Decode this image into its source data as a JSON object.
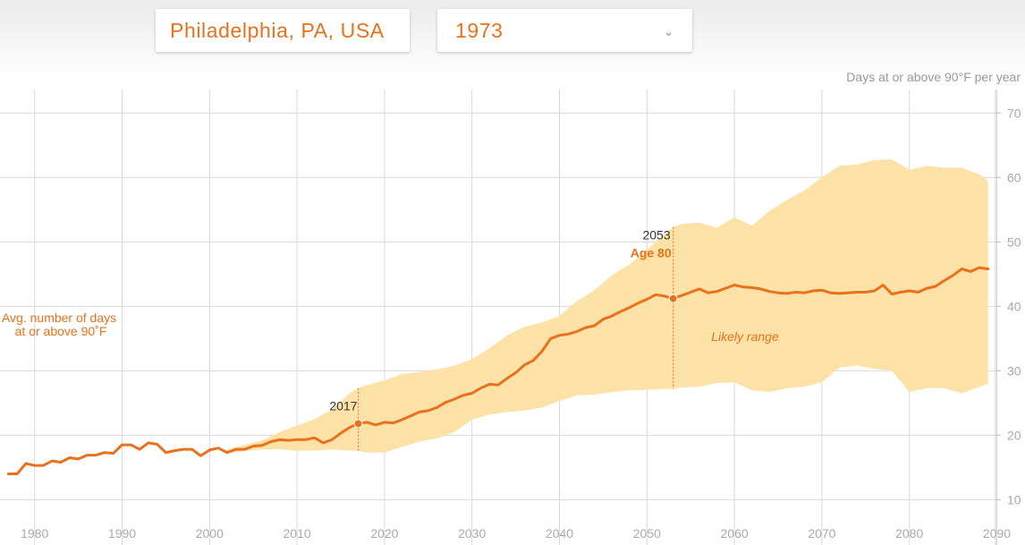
{
  "controls": {
    "location_value": "Philadelphia, PA, USA",
    "year_value": "1973"
  },
  "icons": {
    "year_dropdown": "chevron-down-icon"
  },
  "colors": {
    "accent": "#e9711c",
    "range_fill": "#fde2a8",
    "grid": "#d9d9d9",
    "tick_text": "#aaaaaa"
  },
  "chart_data": {
    "type": "line",
    "unit_label": "Days at or above 90°F per year",
    "series_label": "Avg. number of days at or above 90˚F",
    "range_label": "Likely range",
    "xlim": [
      1977,
      2091
    ],
    "ylim": [
      7,
      72
    ],
    "x_ticks": [
      "1980",
      "1990",
      "2000",
      "2010",
      "2020",
      "2030",
      "2040",
      "2050",
      "2060",
      "2070",
      "2080",
      "2090"
    ],
    "y_ticks": [
      "70",
      "60",
      "50",
      "40",
      "30",
      "20",
      "10"
    ],
    "grid": true,
    "markers": [
      {
        "year_label": "2017",
        "x": 2017,
        "y": 21.8,
        "range_top": 27.3,
        "range_bottom": 17.6
      },
      {
        "year_label": "2053",
        "age_label": "Age 80",
        "x": 2053,
        "y": 41.2,
        "range_top": 52.3,
        "range_bottom": 27.2
      }
    ],
    "series": [
      {
        "name": "Avg. number of days at or above 90˚F",
        "points": [
          [
            1977,
            14
          ],
          [
            1978,
            14
          ],
          [
            1979,
            15.6
          ],
          [
            1980,
            15.3
          ],
          [
            1981,
            15.3
          ],
          [
            1982,
            16
          ],
          [
            1983,
            15.8
          ],
          [
            1984,
            16.5
          ],
          [
            1985,
            16.3
          ],
          [
            1986,
            16.9
          ],
          [
            1987,
            16.9
          ],
          [
            1988,
            17.3
          ],
          [
            1989,
            17.2
          ],
          [
            1990,
            18.5
          ],
          [
            1991,
            18.5
          ],
          [
            1992,
            17.8
          ],
          [
            1993,
            18.8
          ],
          [
            1994,
            18.6
          ],
          [
            1995,
            17.3
          ],
          [
            1996,
            17.6
          ],
          [
            1997,
            17.8
          ],
          [
            1998,
            17.8
          ],
          [
            1999,
            16.8
          ],
          [
            2000,
            17.7
          ],
          [
            2001,
            18
          ],
          [
            2002,
            17.3
          ],
          [
            2003,
            17.8
          ],
          [
            2004,
            17.8
          ],
          [
            2005,
            18.3
          ],
          [
            2006,
            18.4
          ],
          [
            2007,
            19
          ],
          [
            2008,
            19.3
          ],
          [
            2009,
            19.2
          ],
          [
            2010,
            19.3
          ],
          [
            2011,
            19.3
          ],
          [
            2012,
            19.6
          ],
          [
            2013,
            18.8
          ],
          [
            2014,
            19.3
          ],
          [
            2015,
            20.3
          ],
          [
            2016,
            21.2
          ],
          [
            2017,
            21.8
          ],
          [
            2018,
            22
          ],
          [
            2019,
            21.6
          ],
          [
            2020,
            22
          ],
          [
            2021,
            21.9
          ],
          [
            2022,
            22.4
          ],
          [
            2023,
            23
          ],
          [
            2024,
            23.6
          ],
          [
            2025,
            23.8
          ],
          [
            2026,
            24.3
          ],
          [
            2027,
            25.1
          ],
          [
            2028,
            25.6
          ],
          [
            2029,
            26.2
          ],
          [
            2030,
            26.5
          ],
          [
            2031,
            27.3
          ],
          [
            2032,
            27.9
          ],
          [
            2033,
            27.8
          ],
          [
            2034,
            28.8
          ],
          [
            2035,
            29.7
          ],
          [
            2036,
            30.9
          ],
          [
            2037,
            31.6
          ],
          [
            2038,
            33
          ],
          [
            2039,
            35
          ],
          [
            2040,
            35.5
          ],
          [
            2041,
            35.7
          ],
          [
            2042,
            36.1
          ],
          [
            2043,
            36.7
          ],
          [
            2044,
            37
          ],
          [
            2045,
            38
          ],
          [
            2046,
            38.5
          ],
          [
            2047,
            39.2
          ],
          [
            2048,
            39.8
          ],
          [
            2049,
            40.5
          ],
          [
            2050,
            41.1
          ],
          [
            2051,
            41.8
          ],
          [
            2052,
            41.6
          ],
          [
            2053,
            41.2
          ],
          [
            2054,
            41.7
          ],
          [
            2055,
            42.2
          ],
          [
            2056,
            42.7
          ],
          [
            2057,
            42.1
          ],
          [
            2058,
            42.3
          ],
          [
            2059,
            42.8
          ],
          [
            2060,
            43.3
          ],
          [
            2061,
            43
          ],
          [
            2062,
            42.9
          ],
          [
            2063,
            42.7
          ],
          [
            2064,
            42.3
          ],
          [
            2065,
            42.1
          ],
          [
            2066,
            42
          ],
          [
            2067,
            42.2
          ],
          [
            2068,
            42.1
          ],
          [
            2069,
            42.4
          ],
          [
            2070,
            42.5
          ],
          [
            2071,
            42.1
          ],
          [
            2072,
            42
          ],
          [
            2073,
            42.1
          ],
          [
            2074,
            42.2
          ],
          [
            2075,
            42.2
          ],
          [
            2076,
            42.4
          ],
          [
            2077,
            43.3
          ],
          [
            2078,
            41.9
          ],
          [
            2079,
            42.2
          ],
          [
            2080,
            42.4
          ],
          [
            2081,
            42.2
          ],
          [
            2082,
            42.8
          ],
          [
            2083,
            43.1
          ],
          [
            2084,
            44
          ],
          [
            2085,
            44.8
          ],
          [
            2086,
            45.8
          ],
          [
            2087,
            45.4
          ],
          [
            2088,
            46
          ],
          [
            2089,
            45.8
          ]
        ],
        "range_top": [
          [
            2002,
            17.8
          ],
          [
            2004,
            18.5
          ],
          [
            2006,
            19.2
          ],
          [
            2008,
            20.5
          ],
          [
            2010,
            21.5
          ],
          [
            2012,
            22.5
          ],
          [
            2014,
            24
          ],
          [
            2016,
            26.5
          ],
          [
            2017,
            27.3
          ],
          [
            2018,
            27.8
          ],
          [
            2020,
            28.5
          ],
          [
            2022,
            29.5
          ],
          [
            2024,
            29.8
          ],
          [
            2026,
            30.2
          ],
          [
            2028,
            30.8
          ],
          [
            2030,
            31.8
          ],
          [
            2032,
            33.5
          ],
          [
            2034,
            35.5
          ],
          [
            2036,
            36.8
          ],
          [
            2038,
            37.5
          ],
          [
            2040,
            38.5
          ],
          [
            2042,
            40.8
          ],
          [
            2044,
            42.5
          ],
          [
            2046,
            44.8
          ],
          [
            2048,
            46.5
          ],
          [
            2050,
            48.8
          ],
          [
            2052,
            51.2
          ],
          [
            2053,
            52.3
          ],
          [
            2054,
            52.8
          ],
          [
            2056,
            53
          ],
          [
            2058,
            52.2
          ],
          [
            2060,
            53.8
          ],
          [
            2062,
            52.5
          ],
          [
            2064,
            54.8
          ],
          [
            2066,
            56.5
          ],
          [
            2068,
            58
          ],
          [
            2070,
            60
          ],
          [
            2072,
            61.8
          ],
          [
            2074,
            62
          ],
          [
            2076,
            62.7
          ],
          [
            2078,
            62.8
          ],
          [
            2080,
            61.2
          ],
          [
            2082,
            61.8
          ],
          [
            2084,
            61.5
          ],
          [
            2086,
            61.5
          ],
          [
            2088,
            60.5
          ],
          [
            2089,
            59.5
          ]
        ],
        "range_bottom": [
          [
            2002,
            17.2
          ],
          [
            2004,
            17.5
          ],
          [
            2006,
            17.8
          ],
          [
            2008,
            17.8
          ],
          [
            2010,
            17.6
          ],
          [
            2012,
            17.6
          ],
          [
            2014,
            17.8
          ],
          [
            2016,
            17.6
          ],
          [
            2017,
            17.6
          ],
          [
            2018,
            17.3
          ],
          [
            2020,
            17.3
          ],
          [
            2022,
            18.2
          ],
          [
            2024,
            19
          ],
          [
            2026,
            19.5
          ],
          [
            2028,
            20.5
          ],
          [
            2030,
            22.4
          ],
          [
            2032,
            23.2
          ],
          [
            2034,
            23.6
          ],
          [
            2036,
            23.8
          ],
          [
            2038,
            24.3
          ],
          [
            2040,
            25.3
          ],
          [
            2042,
            26.2
          ],
          [
            2044,
            26.3
          ],
          [
            2046,
            26.7
          ],
          [
            2048,
            27
          ],
          [
            2050,
            27
          ],
          [
            2052,
            27.2
          ],
          [
            2053,
            27.2
          ],
          [
            2054,
            27.4
          ],
          [
            2056,
            27.5
          ],
          [
            2058,
            28.1
          ],
          [
            2060,
            28.2
          ],
          [
            2062,
            27
          ],
          [
            2064,
            26.7
          ],
          [
            2066,
            27.3
          ],
          [
            2068,
            27.5
          ],
          [
            2070,
            28.2
          ],
          [
            2072,
            30.5
          ],
          [
            2074,
            30.8
          ],
          [
            2076,
            30.3
          ],
          [
            2078,
            30
          ],
          [
            2080,
            26.7
          ],
          [
            2082,
            27.3
          ],
          [
            2084,
            27.3
          ],
          [
            2086,
            26.5
          ],
          [
            2088,
            27.5
          ],
          [
            2089,
            28
          ]
        ]
      }
    ]
  }
}
